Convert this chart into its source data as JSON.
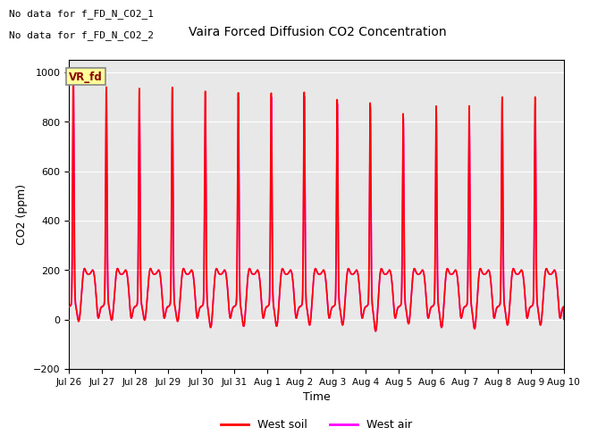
{
  "title": "Vaira Forced Diffusion CO2 Concentration",
  "xlabel": "Time",
  "ylabel": "CO2 (ppm)",
  "ylim": [
    -200,
    1050
  ],
  "yticks": [
    -200,
    0,
    200,
    400,
    600,
    800,
    1000
  ],
  "xtick_labels": [
    "Jul 26",
    "Jul 27",
    "Jul 28",
    "Jul 29",
    "Jul 30",
    "Jul 31",
    "Aug 1",
    "Aug 2",
    "Aug 3",
    "Aug 4",
    "Aug 5",
    "Aug 6",
    "Aug 7",
    "Aug 8",
    "Aug 9",
    "Aug 10"
  ],
  "legend_entries": [
    "West soil",
    "West air"
  ],
  "legend_colors": [
    "#ff0000",
    "#ff00ff"
  ],
  "text_annotations": [
    "No data for f_FD_N_CO2_1",
    "No data for f_FD_N_CO2_2"
  ],
  "vr_fd_label": "VR_fd",
  "bg_color": "#e8e8e8",
  "line_color_soil": "#ff0000",
  "line_color_air": "#ff00ff",
  "line_width": 1.2,
  "num_days": 15,
  "peak_heights": [
    920,
    875,
    870,
    875,
    860,
    855,
    855,
    860,
    830,
    815,
    770,
    800,
    800,
    835,
    835
  ],
  "valley_depths": [
    -100,
    -95,
    -95,
    -100,
    -125,
    -120,
    -120,
    -115,
    -115,
    -140,
    -110,
    -125,
    -130,
    -115,
    -115
  ]
}
